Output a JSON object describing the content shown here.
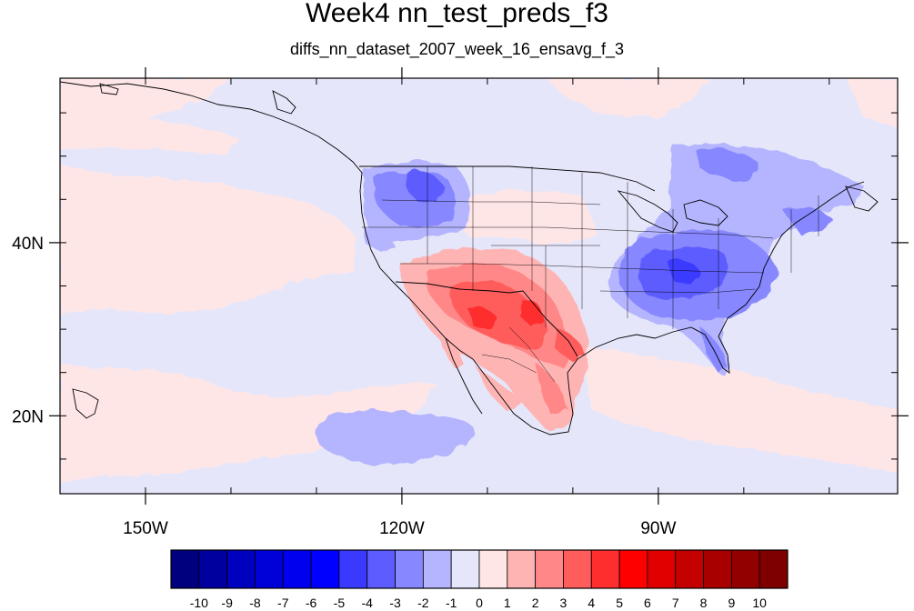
{
  "title": "Week4 nn_test_preds_f3",
  "subtitle": "diffs_nn_dataset_2007_week_16_ensavg_f_3",
  "map": {
    "lon_range": [
      -160,
      -62
    ],
    "lat_range": [
      11,
      59
    ],
    "x_ticks": [
      {
        "lon": -150,
        "label": "150W"
      },
      {
        "lon": -120,
        "label": "120W"
      },
      {
        "lon": -90,
        "label": "90W"
      }
    ],
    "y_ticks": [
      {
        "lat": 20,
        "label": "20N"
      },
      {
        "lat": 40,
        "label": "40N"
      }
    ],
    "minor_lon_step": 10,
    "minor_lat_step": 5
  },
  "colorbar": {
    "labels": [
      "-10",
      "-9",
      "-8",
      "-7",
      "-6",
      "-5",
      "-4",
      "-3",
      "-2",
      "-1",
      "0",
      "1",
      "2",
      "3",
      "4",
      "5",
      "6",
      "7",
      "8",
      "9",
      "10"
    ],
    "colors": [
      "#00007f",
      "#00009f",
      "#0000bf",
      "#0000d9",
      "#0000ef",
      "#0000ff",
      "#3a3aff",
      "#5c5cff",
      "#8787ff",
      "#b4b4ff",
      "#e6e6fa",
      "#ffe6e6",
      "#ffb4b4",
      "#ff8787",
      "#ff5c5c",
      "#ff2e2e",
      "#ff0000",
      "#e00000",
      "#c40000",
      "#a80000",
      "#930000",
      "#7f0000"
    ]
  }
}
